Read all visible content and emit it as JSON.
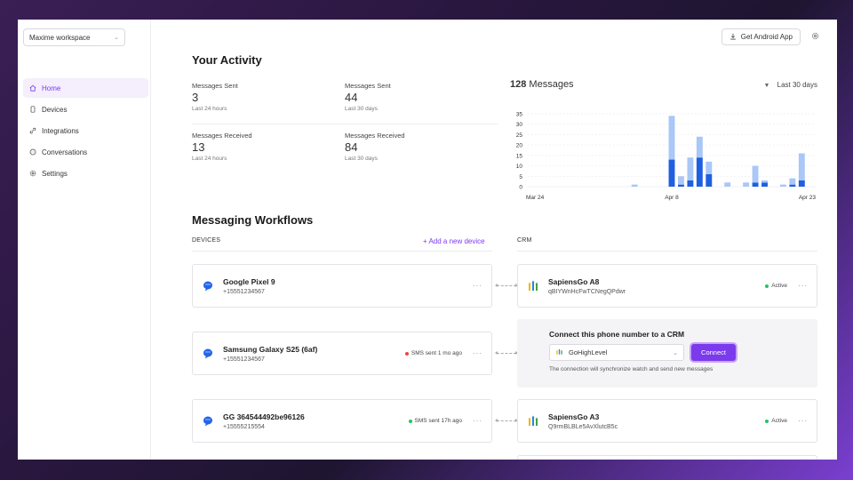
{
  "sidebar": {
    "workspace": "Maxime workspace",
    "items": [
      {
        "label": "Home",
        "icon": "home-icon"
      },
      {
        "label": "Devices",
        "icon": "phone-icon"
      },
      {
        "label": "Integrations",
        "icon": "link-icon"
      },
      {
        "label": "Conversations",
        "icon": "chat-icon"
      },
      {
        "label": "Settings",
        "icon": "gear-icon"
      }
    ]
  },
  "topbar": {
    "android_button": "Get Android App"
  },
  "activity": {
    "title": "Your Activity",
    "stats": [
      {
        "label": "Messages Sent",
        "value": "3",
        "period": "Last 24 hours"
      },
      {
        "label": "Messages Sent",
        "value": "44",
        "period": "Last 30 days"
      },
      {
        "label": "Messages Received",
        "value": "13",
        "period": "Last 24 hours"
      },
      {
        "label": "Messages Received",
        "value": "84",
        "period": "Last 30 days"
      }
    ]
  },
  "chart_header": {
    "count": "128",
    "label": "Messages",
    "range": "Last 30 days"
  },
  "chart_data": {
    "type": "bar",
    "stacked": true,
    "ylim": [
      0,
      35
    ],
    "yticks": [
      0,
      5,
      10,
      15,
      20,
      25,
      30,
      35
    ],
    "xtick_labels": [
      "Mar 24",
      "Apr 8",
      "Apr 23"
    ],
    "categories": [
      "Mar 24",
      "Mar 25",
      "Mar 26",
      "Mar 27",
      "Mar 28",
      "Mar 29",
      "Mar 30",
      "Mar 31",
      "Apr 1",
      "Apr 2",
      "Apr 3",
      "Apr 4",
      "Apr 5",
      "Apr 6",
      "Apr 7",
      "Apr 8",
      "Apr 9",
      "Apr 10",
      "Apr 11",
      "Apr 12",
      "Apr 13",
      "Apr 14",
      "Apr 15",
      "Apr 16",
      "Apr 17",
      "Apr 18",
      "Apr 19",
      "Apr 20",
      "Apr 21",
      "Apr 22",
      "Apr 23"
    ],
    "series": [
      {
        "color": "#1f5fe0",
        "values": [
          0,
          0,
          0,
          0,
          0,
          0,
          0,
          0,
          0,
          0,
          0,
          0,
          0,
          0,
          0,
          13,
          1,
          3,
          14,
          6,
          0,
          0,
          0,
          0,
          2,
          2,
          0,
          0,
          1,
          3,
          0
        ]
      },
      {
        "color": "#a9c7f7",
        "values": [
          0,
          0,
          0,
          0,
          0,
          0,
          0,
          0,
          0,
          0,
          0,
          1,
          0,
          0,
          0,
          21,
          4,
          11,
          10,
          6,
          0,
          2,
          0,
          2,
          8,
          1,
          0,
          1,
          3,
          13,
          0
        ]
      }
    ],
    "grid": true
  },
  "workflows": {
    "title": "Messaging Workflows",
    "devices_header": "DEVICES",
    "crm_header": "CRM",
    "add_device": "+ Add a new device",
    "devices": [
      {
        "name": "Google Pixel 9",
        "phone": "+15551234567",
        "status": "",
        "more": "···"
      },
      {
        "name": "Samsung Galaxy S25 (6af)",
        "phone": "+15551234567",
        "status": "SMS sent 1 mo ago",
        "status_color": "#ef4444",
        "more": "···"
      },
      {
        "name": "GG 364544492be96126",
        "phone": "+15555215554",
        "status": "SMS sent 17h ago",
        "status_color": "#22c55e",
        "more": "···"
      }
    ],
    "crms": [
      {
        "name": "SapiensGo A8",
        "id": "qBIYWnHcFwTCNegQPdwr",
        "status": "Active",
        "more": "···"
      },
      {
        "name": "SapiensGo A3",
        "id": "Q9rmBLBLe5AvXlutcB5c",
        "status": "Active",
        "more": "···"
      }
    ],
    "connect": {
      "title": "Connect this phone number to a CRM",
      "selected": "GoHighLevel",
      "button": "Connect",
      "note": "The connection will synchronize watch and send new messages"
    }
  }
}
